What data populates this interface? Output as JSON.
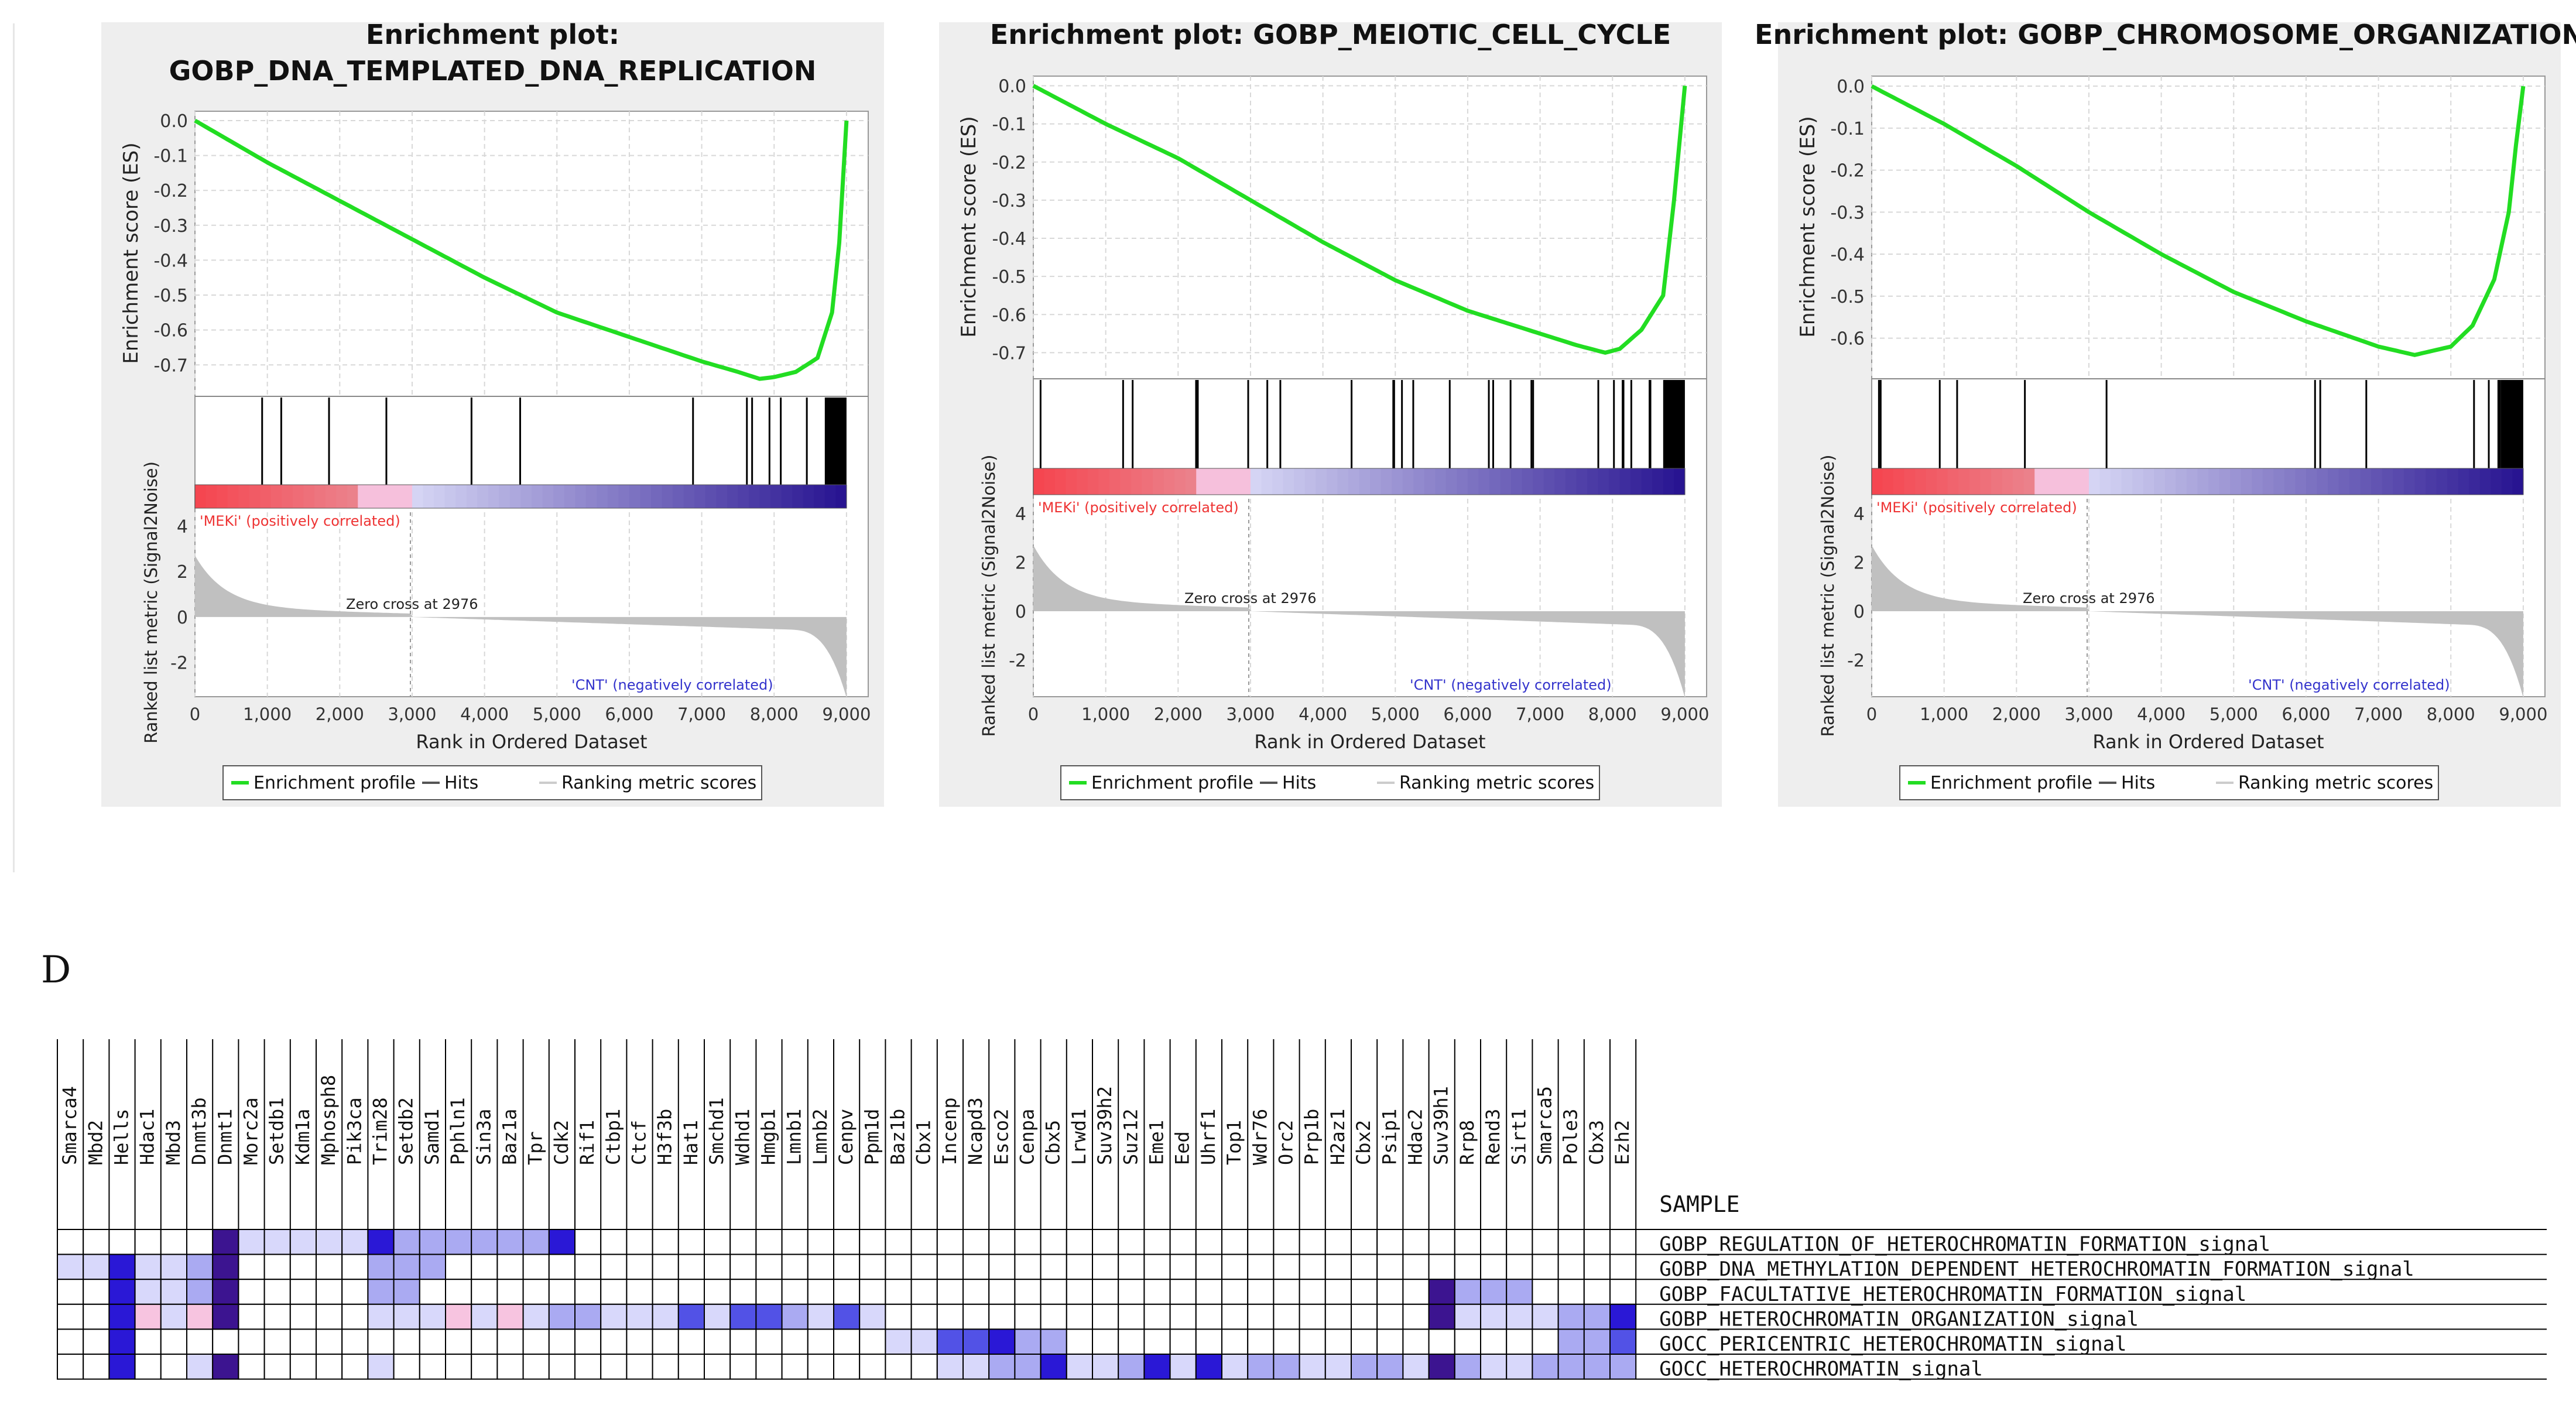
{
  "panel_letter": "D",
  "gsea_common": {
    "y_axis_top": "Enrichment score (ES)",
    "y_axis_bottom": "Ranked list metric (Signal2Noise)",
    "x_axis": "Rank in Ordered Dataset",
    "x_ticks": [
      "0",
      "1,000",
      "2,000",
      "3,000",
      "4,000",
      "5,000",
      "6,000",
      "7,000",
      "8,000",
      "9,000"
    ],
    "pos_label": "'MEKi' (positively correlated)",
    "neg_label": "'CNT' (negatively correlated)",
    "zero_cross": "Zero cross at 2976",
    "metric_ticks": [
      "4",
      "2",
      "0",
      "-2"
    ],
    "legend": [
      "Enrichment profile",
      "Hits",
      "Ranking metric scores"
    ],
    "colors": {
      "es_line": "#22dd22",
      "hits": "#000000",
      "metric": "#c0c0c0",
      "pos": "#ee3333",
      "neg": "#3333cc"
    }
  },
  "chart_data": [
    {
      "type": "line",
      "title_line1": "Enrichment plot:",
      "title_line2": "GOBP_DNA_TEMPLATED_DNA_REPLICATION",
      "es_ticks": [
        "0.0",
        "-0.1",
        "-0.2",
        "-0.3",
        "-0.4",
        "-0.5",
        "-0.6",
        "-0.7"
      ],
      "ylim": [
        -0.77,
        0.01
      ],
      "xlim": [
        0,
        9300
      ],
      "x": [
        0,
        1000,
        2000,
        3000,
        4000,
        5000,
        6000,
        7000,
        7500,
        7800,
        8000,
        8300,
        8600,
        8800,
        8900,
        9000
      ],
      "es": [
        0,
        -0.12,
        -0.23,
        -0.34,
        -0.45,
        -0.55,
        -0.62,
        -0.69,
        -0.72,
        -0.74,
        -0.735,
        -0.72,
        -0.68,
        -0.55,
        -0.35,
        0
      ],
      "hit_density": 0.6
    },
    {
      "type": "line",
      "title_line1": "Enrichment plot: GOBP_MEIOTIC_CELL_CYCLE",
      "title_line2": "",
      "es_ticks": [
        "0.0",
        "-0.1",
        "-0.2",
        "-0.3",
        "-0.4",
        "-0.5",
        "-0.6",
        "-0.7"
      ],
      "ylim": [
        -0.75,
        0.01
      ],
      "xlim": [
        0,
        9300
      ],
      "x": [
        0,
        1000,
        2000,
        3000,
        4000,
        5000,
        6000,
        7000,
        7500,
        7900,
        8100,
        8400,
        8700,
        8850,
        8950,
        9000
      ],
      "es": [
        0,
        -0.1,
        -0.19,
        -0.3,
        -0.41,
        -0.51,
        -0.59,
        -0.65,
        -0.68,
        -0.7,
        -0.69,
        -0.64,
        -0.55,
        -0.3,
        -0.1,
        0
      ],
      "hit_density": 0.75
    },
    {
      "type": "line",
      "title_line1": "Enrichment plot: GOBP_CHROMOSOME_ORGANIZATION",
      "title_line2": "",
      "es_ticks": [
        "0.0",
        "-0.1",
        "-0.2",
        "-0.3",
        "-0.4",
        "-0.5",
        "-0.6"
      ],
      "ylim": [
        -0.68,
        0.01
      ],
      "xlim": [
        0,
        9300
      ],
      "x": [
        0,
        1000,
        2000,
        3000,
        4000,
        5000,
        6000,
        7000,
        7500,
        8000,
        8300,
        8600,
        8800,
        8900,
        9000
      ],
      "es": [
        0,
        -0.09,
        -0.19,
        -0.3,
        -0.4,
        -0.49,
        -0.56,
        -0.62,
        -0.64,
        -0.62,
        -0.57,
        -0.46,
        -0.3,
        -0.14,
        0
      ],
      "hit_density": 0.95
    },
    {
      "type": "heatmap",
      "columns": [
        "Smarca4",
        "Mbd2",
        "Hells",
        "Hdac1",
        "Mbd3",
        "Dnmt3b",
        "Dnmt1",
        "Morc2a",
        "Setdb1",
        "Kdm1a",
        "Mphosph8",
        "Pik3ca",
        "Trim28",
        "Setdb2",
        "Samd1",
        "Pphln1",
        "Sin3a",
        "Baz1a",
        "Tpr",
        "Cdk2",
        "Rif1",
        "Ctbp1",
        "Ctcf",
        "H3f3b",
        "Hat1",
        "Smchd1",
        "Wdhd1",
        "Hmgb1",
        "Lmnb1",
        "Lmnb2",
        "Cenpv",
        "Ppm1d",
        "Baz1b",
        "Cbx1",
        "Incenp",
        "Ncapd3",
        "Esco2",
        "Cenpa",
        "Cbx5",
        "Lrwd1",
        "Suv39h2",
        "Suz12",
        "Eme1",
        "Eed",
        "Uhrf1",
        "Top1",
        "Wdr76",
        "Orc2",
        "Prp1b",
        "H2az1",
        "Cbx2",
        "Psip1",
        "Hdac2",
        "Suv39h1",
        "Rrp8",
        "Rend3",
        "Sirt1",
        "Smarca5",
        "Pole3",
        "Cbx3",
        "Ezh2"
      ],
      "row_header": "SAMPLE",
      "rows": [
        "GOBP_REGULATION_OF_HETEROCHROMATIN_FORMATION_signal",
        "GOBP_DNA_METHYLATION_DEPENDENT_HETEROCHROMATIN_FORMATION_signal",
        "GOBP_FACULTATIVE_HETEROCHROMATIN_FORMATION_signal",
        "GOBP_HETEROCHROMATIN_ORGANIZATION_signal",
        "GOCC_PERICENTRIC_HETEROCHROMATIN_signal",
        "GOCC_HETEROCHROMATIN_signal"
      ],
      "values": [
        [
          0,
          0,
          0,
          0,
          0,
          0,
          5,
          1,
          1,
          1,
          1,
          1,
          4,
          2,
          2,
          2,
          2,
          2,
          2,
          4,
          0,
          0,
          0,
          0,
          0,
          0,
          0,
          0,
          0,
          0,
          0,
          0,
          0,
          0,
          0,
          0,
          0,
          0,
          0,
          0,
          0,
          0,
          0,
          0,
          0,
          0,
          0,
          0,
          0,
          0,
          0,
          0,
          0,
          0,
          0,
          0,
          0,
          0,
          0,
          0,
          0
        ],
        [
          1,
          1,
          4,
          1,
          1,
          2,
          5,
          0,
          0,
          0,
          0,
          0,
          2,
          2,
          2,
          0,
          0,
          0,
          0,
          0,
          0,
          0,
          0,
          0,
          0,
          0,
          0,
          0,
          0,
          0,
          0,
          0,
          0,
          0,
          0,
          0,
          0,
          0,
          0,
          0,
          0,
          0,
          0,
          0,
          0,
          0,
          0,
          0,
          0,
          0,
          0,
          0,
          0,
          0,
          0,
          0,
          0,
          0,
          0,
          0,
          0
        ],
        [
          0,
          0,
          4,
          1,
          1,
          2,
          5,
          0,
          0,
          0,
          0,
          0,
          2,
          2,
          0,
          0,
          0,
          0,
          0,
          0,
          0,
          0,
          0,
          0,
          0,
          0,
          0,
          0,
          0,
          0,
          0,
          0,
          0,
          0,
          0,
          0,
          0,
          0,
          0,
          0,
          0,
          0,
          0,
          0,
          0,
          0,
          0,
          0,
          0,
          0,
          0,
          0,
          0,
          5,
          2,
          2,
          2,
          0,
          0,
          0,
          0
        ],
        [
          0,
          0,
          4,
          -1,
          1,
          -1,
          5,
          0,
          0,
          0,
          0,
          0,
          1,
          1,
          1,
          -1,
          1,
          -1,
          1,
          2,
          2,
          1,
          1,
          1,
          3,
          1,
          3,
          3,
          2,
          1,
          3,
          1,
          0,
          0,
          0,
          0,
          0,
          0,
          0,
          0,
          0,
          0,
          0,
          0,
          0,
          0,
          0,
          0,
          0,
          0,
          0,
          0,
          0,
          5,
          1,
          1,
          1,
          1,
          2,
          2,
          4
        ],
        [
          0,
          0,
          4,
          0,
          0,
          0,
          0,
          0,
          0,
          0,
          0,
          0,
          0,
          0,
          0,
          0,
          0,
          0,
          0,
          0,
          0,
          0,
          0,
          0,
          0,
          0,
          0,
          0,
          0,
          0,
          0,
          0,
          1,
          1,
          3,
          3,
          4,
          2,
          2,
          0,
          0,
          0,
          0,
          0,
          0,
          0,
          0,
          0,
          0,
          0,
          0,
          0,
          0,
          0,
          0,
          0,
          0,
          0,
          2,
          2,
          3
        ],
        [
          0,
          0,
          4,
          0,
          0,
          1,
          5,
          0,
          0,
          0,
          0,
          0,
          1,
          0,
          0,
          0,
          0,
          0,
          0,
          0,
          0,
          0,
          0,
          0,
          0,
          0,
          0,
          0,
          0,
          0,
          0,
          0,
          0,
          0,
          1,
          1,
          2,
          2,
          4,
          1,
          1,
          2,
          4,
          1,
          4,
          1,
          2,
          2,
          1,
          1,
          2,
          2,
          1,
          5,
          2,
          1,
          1,
          2,
          2,
          2,
          2
        ]
      ]
    }
  ]
}
